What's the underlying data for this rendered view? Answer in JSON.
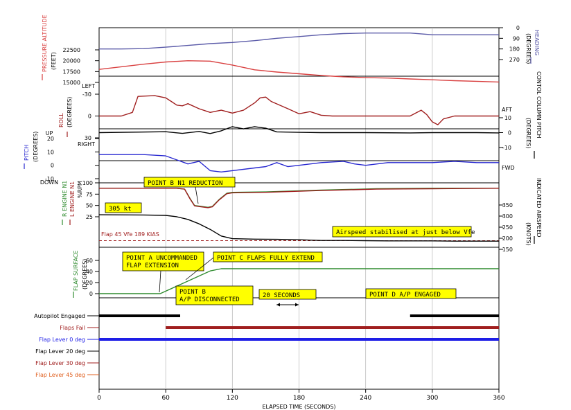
{
  "chart_data": {
    "type": "line",
    "xlabel": "ELAPSED TIME (SECONDS)",
    "xlim": [
      0,
      360
    ],
    "xticks": [
      "0",
      "60",
      "120",
      "180",
      "240",
      "300",
      "360"
    ],
    "colors": {
      "altitude": "#d94040",
      "heading": "#5a5aa8",
      "roll": "#a01e1e",
      "column": "#000000",
      "pitch": "#2828d0",
      "r_n1": "#2e8b2e",
      "l_n1": "#a01e1e",
      "ias": "#000000",
      "flap": "#2e8b2e",
      "vfe": "#a01e1e",
      "callout": "#ffff00",
      "lever0": "#1e1ee6",
      "lever20": "#000000",
      "lever30": "#a01e1e",
      "lever45": "#e06020"
    },
    "panels": {
      "altitude_heading": {
        "left_label": [
          "PRESSURE ALTITUDE",
          "(FEET)"
        ],
        "left_ticks": [
          "22500",
          "20000",
          "17500",
          "15000"
        ],
        "left_range": [
          15000,
          22500
        ],
        "right_label": [
          "HEADING",
          "(DEGREES)"
        ],
        "right_ticks": [
          "0",
          "90",
          "180",
          "270"
        ],
        "right_range": [
          0,
          270
        ]
      },
      "roll_column": {
        "left_label": [
          "ROLL",
          "(DEGREES)"
        ],
        "left_ticks": [
          "-30",
          "0",
          "30"
        ],
        "left_range": [
          -30,
          30
        ],
        "left_words": [
          "LEFT",
          "RIGHT"
        ],
        "right_label": [
          "CONTOL COLUMN PITCH",
          "(DEGREES)"
        ],
        "right_ticks": [
          "10",
          "0",
          "-10"
        ],
        "right_range": [
          -10,
          10
        ],
        "right_words": [
          "AFT",
          "FWD"
        ]
      },
      "pitch": {
        "left_label": [
          "PITCH",
          "(DEGREES)"
        ],
        "left_ticks": [
          "20",
          "10",
          "0",
          "-10"
        ],
        "left_range": [
          -10,
          20
        ],
        "left_words": [
          "UP",
          "DOWN"
        ]
      },
      "n1_ias": {
        "left_label": [
          "R ENGINE N1",
          "L ENGINE N1",
          "%RPM"
        ],
        "left_ticks": [
          "100",
          "75",
          "50",
          "25"
        ],
        "left_range": [
          25,
          100
        ],
        "right_label": [
          "INDICATED AIRSPEED",
          "(KNOTS)"
        ],
        "right_ticks": [
          "350",
          "300",
          "250",
          "200",
          "150"
        ],
        "right_range": [
          150,
          350
        ],
        "vfe_label": "Flap 45 Vfe 189 KIAS",
        "vfe_value": 189
      },
      "flap": {
        "left_label": [
          "FLAP SURFACE",
          "(DEGREES)"
        ],
        "left_ticks": [
          "60",
          "40",
          "20",
          "0"
        ],
        "left_range": [
          0,
          60
        ]
      }
    },
    "series": [
      {
        "name": "PRESSURE ALTITUDE",
        "x": [
          0,
          20,
          40,
          60,
          80,
          100,
          120,
          140,
          160,
          180,
          200,
          220,
          240,
          260,
          280,
          300,
          320,
          340,
          360
        ],
        "y": [
          18000,
          18600,
          19200,
          19700,
          20000,
          19900,
          19000,
          17900,
          17400,
          17000,
          16600,
          16300,
          16100,
          16000,
          15800,
          15600,
          15400,
          15250,
          15100
        ]
      },
      {
        "name": "HEADING",
        "x": [
          0,
          20,
          40,
          60,
          80,
          100,
          120,
          140,
          160,
          180,
          200,
          220,
          240,
          260,
          280,
          300,
          320,
          340,
          360
        ],
        "y": [
          180,
          180,
          177,
          165,
          150,
          135,
          125,
          110,
          90,
          75,
          60,
          50,
          45,
          45,
          45,
          60,
          60,
          60,
          60
        ]
      },
      {
        "name": "ROLL",
        "x": [
          0,
          20,
          30,
          35,
          50,
          60,
          65,
          70,
          75,
          80,
          90,
          100,
          110,
          120,
          130,
          140,
          145,
          150,
          155,
          170,
          180,
          190,
          200,
          210,
          220,
          240,
          260,
          280,
          290,
          295,
          300,
          305,
          310,
          320,
          340,
          360
        ],
        "y": [
          0,
          0,
          -5,
          -27,
          -28,
          -25,
          -20,
          -15,
          -14,
          -17,
          -10,
          -5,
          -8,
          -4,
          -8,
          -18,
          -25,
          -26,
          -20,
          -10,
          -3,
          -6,
          -1,
          0,
          0,
          0,
          0,
          0,
          -8,
          -2,
          8,
          12,
          4,
          0,
          0,
          0
        ]
      },
      {
        "name": "CONTOL COLUMN PITCH",
        "x": [
          0,
          60,
          75,
          90,
          100,
          110,
          120,
          130,
          140,
          150,
          160,
          180,
          200,
          240,
          280,
          300,
          320,
          340,
          360
        ],
        "y": [
          0,
          0.6,
          -0.5,
          0.8,
          -0.6,
          1.2,
          4,
          2.5,
          4,
          3,
          0.5,
          0.2,
          0,
          0,
          -0.2,
          0,
          0,
          0,
          -0.2
        ]
      },
      {
        "name": "PITCH",
        "x": [
          0,
          40,
          60,
          70,
          80,
          90,
          100,
          110,
          120,
          140,
          150,
          160,
          170,
          180,
          200,
          220,
          230,
          240,
          260,
          280,
          300,
          320,
          340,
          360
        ],
        "y": [
          8,
          8,
          7,
          4,
          1,
          3,
          -4,
          -5,
          -4,
          -2,
          -1,
          2,
          -1,
          0,
          2,
          3,
          1,
          0,
          2,
          2,
          2,
          3,
          2,
          2
        ]
      },
      {
        "name": "R ENGINE N1",
        "x": [
          0,
          70,
          77,
          82,
          86,
          98,
          102,
          108,
          115,
          120,
          150,
          200,
          250,
          300,
          360
        ],
        "y": [
          88,
          88,
          86,
          65,
          50,
          46,
          48,
          63,
          77,
          79,
          80,
          84,
          87,
          88,
          88
        ]
      },
      {
        "name": "L ENGINE N1",
        "x": [
          0,
          70,
          77,
          82,
          86,
          98,
          102,
          108,
          115,
          120,
          150,
          200,
          250,
          300,
          360
        ],
        "y": [
          88,
          88,
          86,
          64,
          49,
          45,
          47,
          62,
          76,
          78,
          79,
          83,
          86,
          87,
          88
        ]
      },
      {
        "name": "INDICATED AIRSPEED",
        "x": [
          0,
          40,
          60,
          70,
          80,
          90,
          100,
          110,
          120,
          140,
          160,
          180,
          200,
          220,
          240,
          260,
          280,
          300,
          320,
          340,
          360
        ],
        "y": [
          306,
          305,
          303,
          297,
          285,
          265,
          240,
          210,
          198,
          196,
          195,
          193,
          190,
          190,
          189,
          188,
          188,
          188,
          187,
          187,
          187
        ]
      },
      {
        "name": "FLAP SURFACE",
        "x": [
          0,
          55,
          100,
          110,
          360
        ],
        "y": [
          0,
          0,
          41,
          45,
          45
        ]
      }
    ],
    "callouts": [
      {
        "text": "POINT B N1 REDUCTION"
      },
      {
        "text": "305 kt"
      },
      {
        "text": "Airspeed stabilised at just below Vfe"
      },
      {
        "text": "POINT A UNCOMMANDED",
        "text2": "FLAP EXTENSION"
      },
      {
        "text": "POINT C FLAPS FULLY EXTEND"
      },
      {
        "text": "POINT B",
        "text2": "A/P DISCONNECTED"
      },
      {
        "text": "20 SECONDS"
      },
      {
        "text": "POINT D A/P ENGAGED"
      }
    ],
    "discretes": [
      {
        "name": "Autopilot Engaged",
        "segments": [
          [
            0,
            73
          ],
          [
            280,
            360
          ]
        ]
      },
      {
        "name": "Flaps Fail",
        "segments": [
          [
            60,
            360
          ]
        ]
      },
      {
        "name": "Flap Lever 0 deg",
        "segments": [
          [
            0,
            360
          ]
        ]
      },
      {
        "name": "Flap Lever 20 deg",
        "segments": []
      },
      {
        "name": "Flap Lever 30 deg",
        "segments": []
      },
      {
        "name": "Flap Lever 45 deg",
        "segments": []
      }
    ]
  }
}
